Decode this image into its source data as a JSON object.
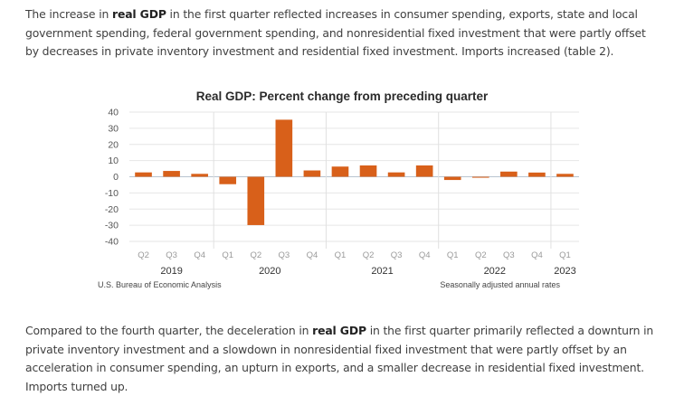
{
  "paragraphs": {
    "p1": {
      "before": "The increase in ",
      "bold": "real GDP",
      "after": " in the first quarter reflected increases in consumer spending, exports, state and local government spending, federal government spending, and nonresidential fixed investment that were partly offset by decreases in private inventory investment and residential fixed investment. Imports increased (table 2)."
    },
    "p2": {
      "before": "Compared to the fourth quarter, the deceleration in ",
      "bold": "real GDP",
      "after": " in the first quarter primarily reflected a downturn in private inventory investment and a slowdown in nonresidential fixed investment that were partly offset by an acceleration in consumer spending, an upturn in exports, and a smaller decrease in residential fixed investment. Imports turned up."
    }
  },
  "colors": {
    "bar": "#d8601a"
  },
  "chart_data": {
    "type": "bar",
    "title": "Real GDP:  Percent change from preceding quarter",
    "xlabel": "",
    "ylabel": "",
    "ylim": [
      -40,
      40
    ],
    "yticks": [
      40,
      30,
      20,
      10,
      0,
      -10,
      -20,
      -30,
      -40
    ],
    "grid": true,
    "categories": [
      "Q2",
      "Q3",
      "Q4",
      "Q1",
      "Q2",
      "Q3",
      "Q4",
      "Q1",
      "Q2",
      "Q3",
      "Q4",
      "Q1",
      "Q2",
      "Q3",
      "Q4",
      "Q1"
    ],
    "years": [
      {
        "label": "2019",
        "span": [
          0,
          2
        ]
      },
      {
        "label": "2020",
        "span": [
          3,
          6
        ]
      },
      {
        "label": "2021",
        "span": [
          7,
          10
        ]
      },
      {
        "label": "2022",
        "span": [
          11,
          14
        ]
      },
      {
        "label": "2023",
        "span": [
          15,
          15
        ]
      }
    ],
    "values": [
      2.7,
      3.6,
      1.8,
      -4.6,
      -29.9,
      35.3,
      3.9,
      6.3,
      7.0,
      2.7,
      7.0,
      -2.0,
      -0.6,
      3.2,
      2.6,
      1.8
    ],
    "source_note": "U.S. Bureau of Economic Analysis",
    "rate_note": "Seasonally adjusted annual rates"
  }
}
